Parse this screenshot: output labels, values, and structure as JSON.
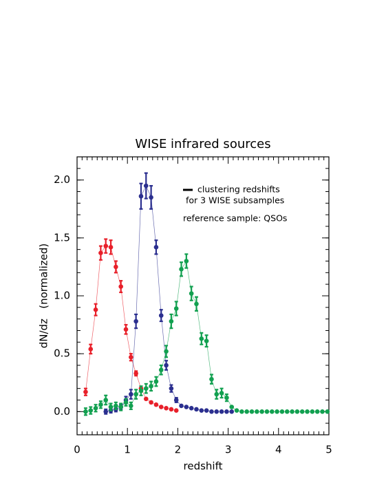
{
  "chart_data": {
    "type": "errorbar-line",
    "title": "WISE infrared sources",
    "x_label": "redshift",
    "y_label": "dN/dz   (normalized)",
    "annotations": [
      "clustering redshifts",
      "for 3 WISE subsamples",
      "reference sample: QSOs"
    ],
    "xlim": [
      0,
      5
    ],
    "ylim": [
      -0.2,
      2.2
    ],
    "xticks": [
      0,
      1,
      2,
      3,
      4,
      5
    ],
    "yticks": [
      {
        "value": 0,
        "label": "0.0"
      },
      {
        "value": 0.5,
        "label": "0.5"
      },
      {
        "value": 1,
        "label": "1.0"
      },
      {
        "value": 1.5,
        "label": "1.5"
      },
      {
        "value": 2,
        "label": "2.0"
      }
    ],
    "x_minor": 10,
    "y_minor": 5,
    "series": [
      {
        "color": "#e8202a",
        "x": [
          0.17,
          0.27,
          0.37,
          0.47,
          0.57,
          0.67,
          0.77,
          0.87,
          0.97,
          1.07,
          1.17,
          1.27,
          1.37,
          1.47,
          1.57,
          1.67,
          1.77,
          1.87,
          1.97
        ],
        "values": [
          0.17,
          0.54,
          0.88,
          1.37,
          1.43,
          1.42,
          1.25,
          1.08,
          0.71,
          0.47,
          0.33,
          0.2,
          0.11,
          0.08,
          0.06,
          0.04,
          0.03,
          0.02,
          0.01
        ],
        "errors": [
          0.03,
          0.04,
          0.05,
          0.06,
          0.06,
          0.06,
          0.05,
          0.05,
          0.04,
          0.03,
          0.02,
          0,
          0,
          0,
          0,
          0,
          0,
          0,
          0
        ]
      },
      {
        "color": "#2b2f8f",
        "x": [
          0.57,
          0.67,
          0.77,
          0.87,
          0.97,
          1.07,
          1.17,
          1.27,
          1.37,
          1.47,
          1.57,
          1.67,
          1.77,
          1.87,
          1.97,
          2.07,
          2.17,
          2.27,
          2.37,
          2.47,
          2.57,
          2.67,
          2.77,
          2.87,
          2.97,
          3.07
        ],
        "values": [
          0,
          0.01,
          0.02,
          0.04,
          0.1,
          0.15,
          0.78,
          1.86,
          1.95,
          1.85,
          1.42,
          0.83,
          0.4,
          0.2,
          0.1,
          0.05,
          0.04,
          0.03,
          0.02,
          0.01,
          0.01,
          0,
          0,
          0,
          0,
          0
        ],
        "errors": [
          0.02,
          0.02,
          0.02,
          0.02,
          0.03,
          0.04,
          0.06,
          0.11,
          0.11,
          0.1,
          0.06,
          0.05,
          0.04,
          0.03,
          0.02,
          0,
          0,
          0,
          0,
          0,
          0,
          0,
          0,
          0,
          0,
          0
        ]
      },
      {
        "color": "#12a050",
        "x": [
          0.17,
          0.27,
          0.37,
          0.47,
          0.57,
          0.67,
          0.77,
          0.87,
          0.97,
          1.07,
          1.17,
          1.27,
          1.37,
          1.47,
          1.57,
          1.67,
          1.77,
          1.87,
          1.97,
          2.07,
          2.17,
          2.27,
          2.37,
          2.47,
          2.57,
          2.67,
          2.77,
          2.87,
          2.97,
          3.07,
          3.17,
          3.27,
          3.37,
          3.47,
          3.57,
          3.67,
          3.77,
          3.87,
          3.97,
          4.07,
          4.17,
          4.27,
          4.37,
          4.47,
          4.57,
          4.67,
          4.77,
          4.87,
          4.97
        ],
        "values": [
          0,
          0.01,
          0.03,
          0.06,
          0.1,
          0.04,
          0.05,
          0.04,
          0.08,
          0.05,
          0.15,
          0.18,
          0.2,
          0.22,
          0.26,
          0.36,
          0.52,
          0.78,
          0.89,
          1.23,
          1.3,
          1.02,
          0.93,
          0.63,
          0.61,
          0.28,
          0.15,
          0.16,
          0.12,
          0.04,
          0.01,
          0,
          0,
          0,
          0,
          0,
          0,
          0,
          0,
          0,
          0,
          0,
          0,
          0,
          0,
          0,
          0,
          0,
          0
        ],
        "errors": [
          0.03,
          0.03,
          0.03,
          0.03,
          0.04,
          0.03,
          0.03,
          0.03,
          0.03,
          0.03,
          0.04,
          0.04,
          0.04,
          0.04,
          0.04,
          0.04,
          0.05,
          0.06,
          0.06,
          0.06,
          0.06,
          0.06,
          0.06,
          0.05,
          0.05,
          0.04,
          0.04,
          0.04,
          0.03,
          0,
          0,
          0,
          0,
          0,
          0,
          0,
          0,
          0,
          0,
          0,
          0,
          0,
          0,
          0,
          0,
          0,
          0,
          0,
          0
        ]
      }
    ]
  }
}
